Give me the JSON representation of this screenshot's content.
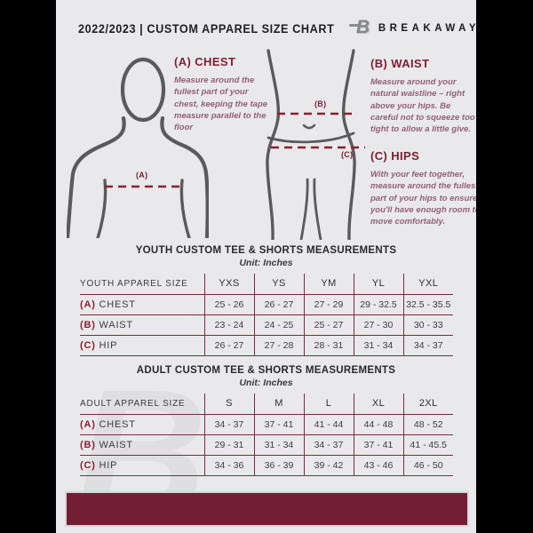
{
  "header": {
    "title": "2022/2023 | CUSTOM APPAREL SIZE CHART",
    "brand": "BREAKAWAY",
    "logo_letter": "B"
  },
  "guide": {
    "markers": {
      "chest": "(A)",
      "waist": "(B)",
      "hip": "(C)"
    },
    "chest": {
      "heading": "(A) CHEST",
      "body": "Measure around the fullest part of your chest, keeping the tape measure parallel to the floor"
    },
    "waist": {
      "heading": "(B) WAIST",
      "body": "Measure around your natural waistline – right above your hips. Be careful not to squeeze too tight to allow a little give."
    },
    "hips": {
      "heading": "(C) HIPS",
      "body": "With your feet together, measure around the fullest part of your hips to ensure you'll have enough room to move comfortably."
    }
  },
  "youth_table": {
    "title": "YOUTH CUSTOM TEE & SHORTS MEASUREMENTS",
    "unit": "Unit: Inches",
    "header": [
      "YOUTH APPAREL SIZE",
      "YXS",
      "YS",
      "YM",
      "YL",
      "YXL"
    ],
    "rows": [
      {
        "prefix": "(A)",
        "label": "CHEST",
        "values": [
          "25 - 26",
          "26 - 27",
          "27 - 29",
          "29 - 32.5",
          "32.5 - 35.5"
        ]
      },
      {
        "prefix": "(B)",
        "label": "WAIST",
        "values": [
          "23 - 24",
          "24 - 25",
          "25 - 27",
          "27 - 30",
          "30 - 33"
        ]
      },
      {
        "prefix": "(C)",
        "label": "HIP",
        "values": [
          "26 - 27",
          "27 - 28",
          "28 - 31",
          "31 - 34",
          "34 - 37"
        ]
      }
    ]
  },
  "adult_table": {
    "title": "ADULT CUSTOM TEE & SHORTS MEASUREMENTS",
    "unit": "Unit: Inches",
    "header": [
      "ADULT APPAREL SIZE",
      "S",
      "M",
      "L",
      "XL",
      "2XL"
    ],
    "rows": [
      {
        "prefix": "(A)",
        "label": "CHEST",
        "values": [
          "34 - 37",
          "37 - 41",
          "41 - 44",
          "44 - 48",
          "48 - 52"
        ]
      },
      {
        "prefix": "(B)",
        "label": "WAIST",
        "values": [
          "29 - 31",
          "31 - 34",
          "34 - 37",
          "37 - 41",
          "41 - 45.5"
        ]
      },
      {
        "prefix": "(C)",
        "label": "HIP",
        "values": [
          "34 - 36",
          "36 - 39",
          "39 - 42",
          "43 - 46",
          "46 - 50"
        ]
      }
    ]
  },
  "colors": {
    "maroon_dark": "#721e33",
    "maroon_line": "#7e2940",
    "maroon_text": "#7c1f31",
    "maroon_dash": "#8e1e31",
    "page_bg": "#e9e9eb",
    "figure_stroke": "#5a5a5e"
  }
}
